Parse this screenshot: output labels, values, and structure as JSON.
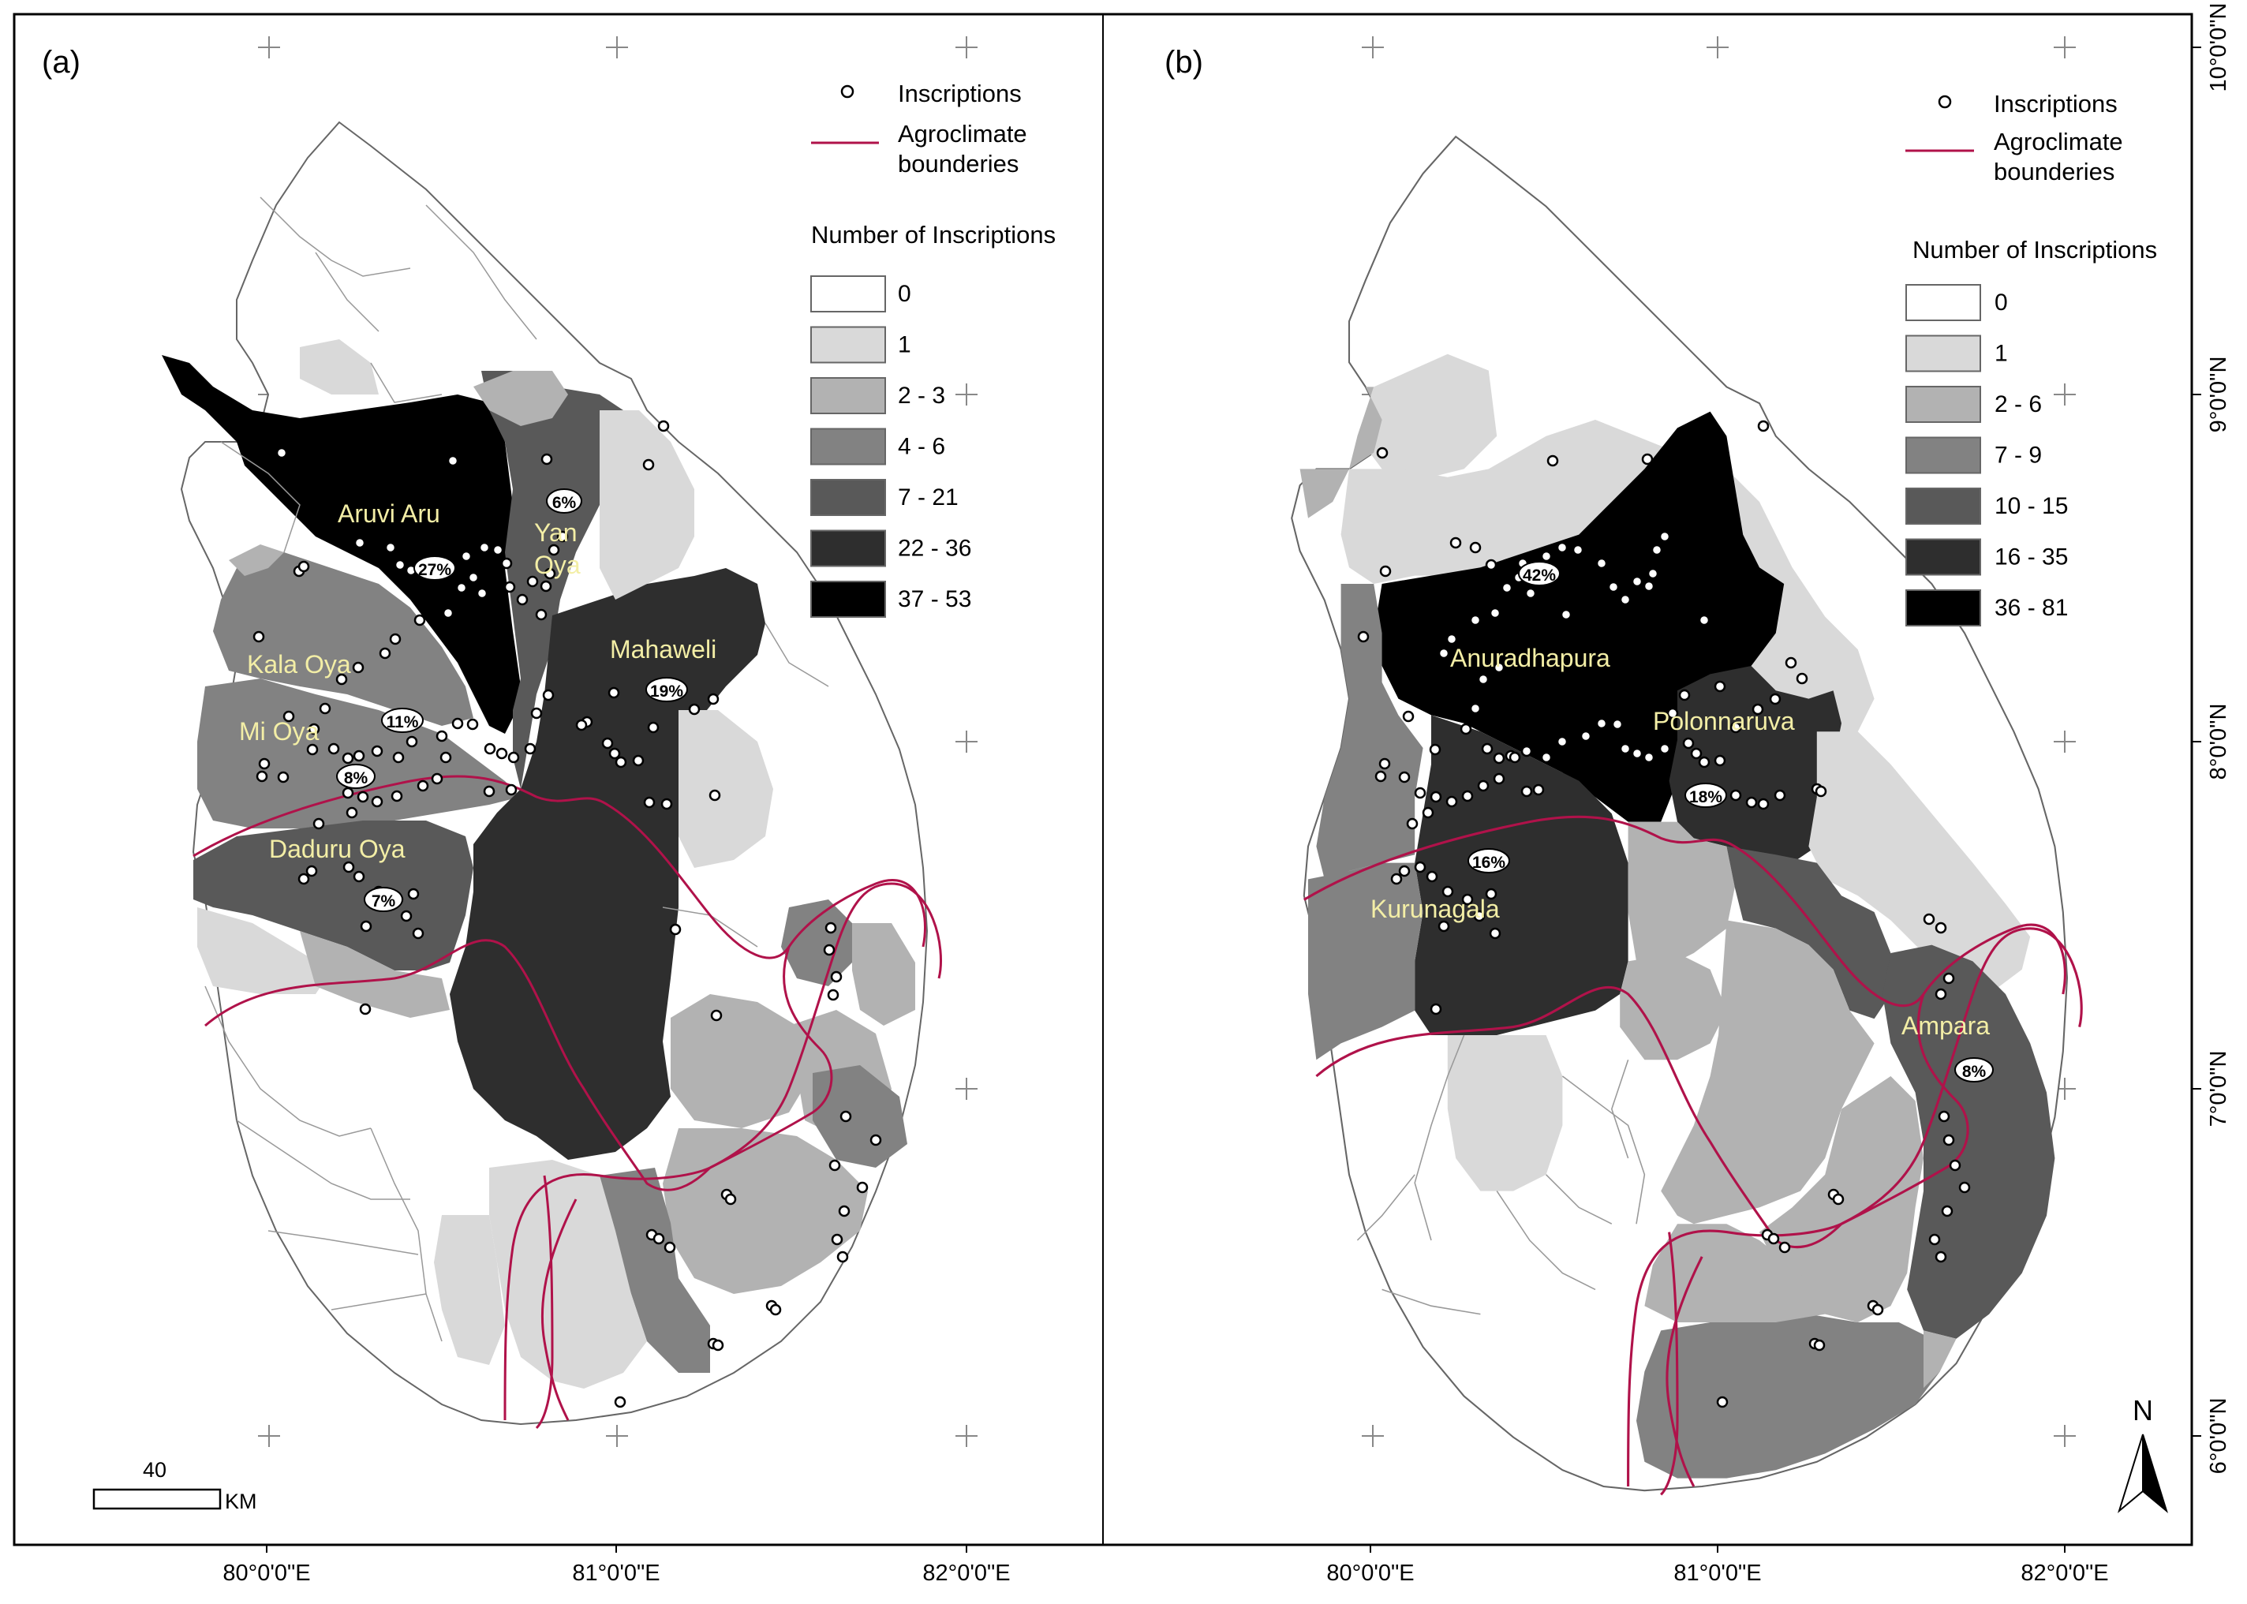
{
  "axes": {
    "x_ticks": [
      {
        "id": "x1",
        "label": "80°0'0\"E"
      },
      {
        "id": "x2",
        "label": "81°0'0\"E"
      },
      {
        "id": "x3",
        "label": "82°0'0\"E"
      },
      {
        "id": "x4",
        "label": "80°0'0\"E"
      },
      {
        "id": "x5",
        "label": "81°0'0\"E"
      },
      {
        "id": "x6",
        "label": "82°0'0\"E"
      }
    ],
    "y_ticks": [
      {
        "id": "y1",
        "label": "10°0'0\"N"
      },
      {
        "id": "y2",
        "label": "9°0'0\"N"
      },
      {
        "id": "y3",
        "label": "8°0'0\"N"
      },
      {
        "id": "y4",
        "label": "7°0'0\"N"
      },
      {
        "id": "y5",
        "label": "6°0'0\"N"
      }
    ]
  },
  "panel_a": {
    "label": "(a)",
    "legend": {
      "inscriptions": "Inscriptions",
      "agroclimate_line1": "Agroclimate",
      "agroclimate_line2": "bounderies",
      "number_title": "Number of Inscriptions",
      "classes": [
        {
          "label": "0",
          "color": "#ffffff"
        },
        {
          "label": "1",
          "color": "#d9d9d9"
        },
        {
          "label": "2 - 3",
          "color": "#b2b2b2"
        },
        {
          "label": "4 - 6",
          "color": "#828282"
        },
        {
          "label": "7 - 21",
          "color": "#595959"
        },
        {
          "label": "22 - 36",
          "color": "#2e2e2e"
        },
        {
          "label": "37 - 53",
          "color": "#000000"
        }
      ]
    },
    "regions": [
      {
        "name": "Aruvi Aru",
        "line1": "Aruvi Aru",
        "line2": "",
        "pct": "27%"
      },
      {
        "name": "Yan Oya",
        "line1": "Yan",
        "line2": "Oya",
        "pct": "6%"
      },
      {
        "name": "Kala Oya",
        "line1": "Kala Oya",
        "line2": "",
        "pct": "11%"
      },
      {
        "name": "Mi Oya",
        "line1": "Mi Oya",
        "line2": "",
        "pct": "8%"
      },
      {
        "name": "Mahaweli",
        "line1": "Mahaweli",
        "line2": "",
        "pct": "19%"
      },
      {
        "name": "Daduru Oya",
        "line1": "Daduru Oya",
        "line2": "",
        "pct": "7%"
      }
    ],
    "scale": {
      "value": "40",
      "unit": "KM"
    }
  },
  "panel_b": {
    "label": "(b)",
    "legend": {
      "inscriptions": "Inscriptions",
      "agroclimate_line1": "Agroclimate",
      "agroclimate_line2": "bounderies",
      "number_title": "Number of Inscriptions",
      "classes": [
        {
          "label": "0",
          "color": "#ffffff"
        },
        {
          "label": "1",
          "color": "#d9d9d9"
        },
        {
          "label": "2 - 6",
          "color": "#b2b2b2"
        },
        {
          "label": "7 - 9",
          "color": "#828282"
        },
        {
          "label": "10 - 15",
          "color": "#595959"
        },
        {
          "label": "16 - 35",
          "color": "#2e2e2e"
        },
        {
          "label": "36 - 81",
          "color": "#000000"
        }
      ]
    },
    "regions": [
      {
        "name": "Anuradhapura",
        "line1": "Anuradhapura",
        "line2": "",
        "pct": "42%"
      },
      {
        "name": "Polonnaruva",
        "line1": "Polonnaruva",
        "line2": "",
        "pct": "18%"
      },
      {
        "name": "Kurunagala",
        "line1": "Kurunagala",
        "line2": "",
        "pct": "16%"
      },
      {
        "name": "Ampara",
        "line1": "Ampara",
        "line2": "",
        "pct": "8%"
      }
    ],
    "north": "N"
  },
  "colors": {
    "agroclimate_line": "#b0124a",
    "region_label": "#f3eea6"
  }
}
